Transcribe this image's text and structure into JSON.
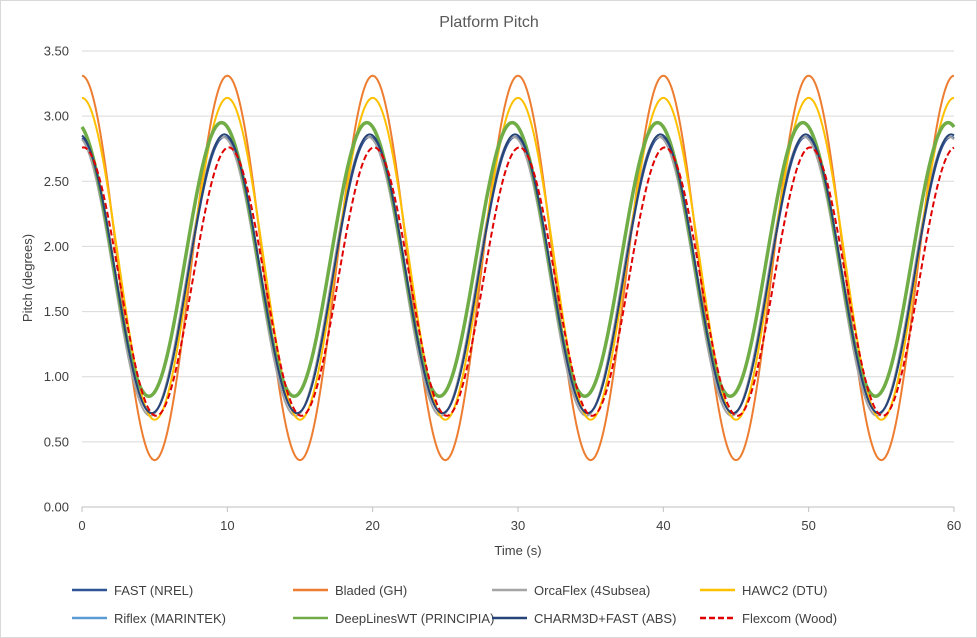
{
  "chart_data": {
    "type": "line",
    "title": "Platform Pitch",
    "xlabel": "Time (s)",
    "ylabel": "Pitch (degrees)",
    "xlim": [
      0,
      60
    ],
    "ylim": [
      0,
      3.5
    ],
    "x_ticks": [
      0,
      10,
      20,
      30,
      40,
      50,
      60
    ],
    "y_ticks": [
      0,
      0.5,
      1.0,
      1.5,
      2.0,
      2.5,
      3.0,
      3.5
    ],
    "x_tick_labels": [
      "0",
      "10",
      "20",
      "30",
      "40",
      "50",
      "60"
    ],
    "y_tick_labels": [
      "0.00",
      "0.50",
      "1.00",
      "1.50",
      "2.00",
      "2.50",
      "3.00",
      "3.50"
    ],
    "grid": "horizontal",
    "legend_position": "bottom",
    "period_s": 10,
    "series": [
      {
        "name": "FAST (NREL)",
        "color": "#2f5597",
        "dash": "solid",
        "max": 2.84,
        "min": 0.72,
        "peak_time_s": 9.8
      },
      {
        "name": "Bladed (GH)",
        "color": "#ed7d31",
        "dash": "solid",
        "max": 3.31,
        "min": 0.36,
        "peak_time_s": 10.0
      },
      {
        "name": "OrcaFlex (4Subsea)",
        "color": "#a5a5a5",
        "dash": "solid",
        "max": 2.84,
        "min": 0.7,
        "peak_time_s": 9.7
      },
      {
        "name": "HAWC2 (DTU)",
        "color": "#ffc000",
        "dash": "solid",
        "max": 3.14,
        "min": 0.67,
        "peak_time_s": 10.0
      },
      {
        "name": "Riflex (MARINTEK)",
        "color": "#5b9bd5",
        "dash": "solid",
        "max": 2.95,
        "min": 0.85,
        "peak_time_s": 9.6
      },
      {
        "name": "DeepLinesWT (PRINCIPIA)",
        "color": "#70ad47",
        "dash": "solid",
        "max": 2.95,
        "min": 0.85,
        "peak_time_s": 9.6
      },
      {
        "name": "CHARM3D+FAST (ABS)",
        "color": "#264478",
        "dash": "solid",
        "max": 2.86,
        "min": 0.72,
        "peak_time_s": 9.8
      },
      {
        "name": "Flexcom (Wood)",
        "color": "#e00000",
        "dash": "dashed",
        "max": 2.76,
        "min": 0.7,
        "peak_time_s": 10.1
      }
    ]
  }
}
